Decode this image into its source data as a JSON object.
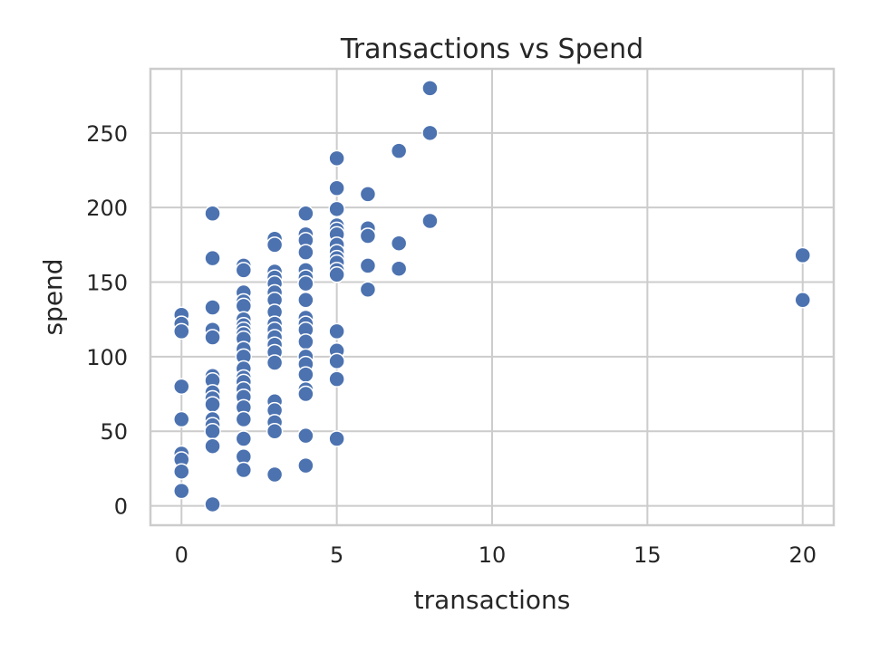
{
  "chart_data": {
    "type": "scatter",
    "title": "Transactions vs Spend",
    "xlabel": "transactions",
    "ylabel": "spend",
    "xlim": [
      -1,
      21
    ],
    "ylim": [
      -13,
      293
    ],
    "xticks": [
      0,
      5,
      10,
      15,
      20
    ],
    "yticks": [
      0,
      50,
      100,
      150,
      200,
      250
    ],
    "grid": true,
    "color": "#4c72b0",
    "points": [
      {
        "x": 0,
        "y": 128
      },
      {
        "x": 0,
        "y": 122
      },
      {
        "x": 0,
        "y": 117
      },
      {
        "x": 0,
        "y": 80
      },
      {
        "x": 0,
        "y": 58
      },
      {
        "x": 0,
        "y": 35
      },
      {
        "x": 0,
        "y": 31
      },
      {
        "x": 0,
        "y": 23
      },
      {
        "x": 0,
        "y": 10
      },
      {
        "x": 1,
        "y": 196
      },
      {
        "x": 1,
        "y": 166
      },
      {
        "x": 1,
        "y": 133
      },
      {
        "x": 1,
        "y": 118
      },
      {
        "x": 1,
        "y": 113
      },
      {
        "x": 1,
        "y": 87
      },
      {
        "x": 1,
        "y": 84
      },
      {
        "x": 1,
        "y": 76
      },
      {
        "x": 1,
        "y": 72
      },
      {
        "x": 1,
        "y": 68
      },
      {
        "x": 1,
        "y": 58
      },
      {
        "x": 1,
        "y": 54
      },
      {
        "x": 1,
        "y": 50
      },
      {
        "x": 1,
        "y": 40
      },
      {
        "x": 1,
        "y": 1
      },
      {
        "x": 2,
        "y": 161
      },
      {
        "x": 2,
        "y": 158
      },
      {
        "x": 2,
        "y": 143
      },
      {
        "x": 2,
        "y": 137
      },
      {
        "x": 2,
        "y": 134
      },
      {
        "x": 2,
        "y": 125
      },
      {
        "x": 2,
        "y": 121
      },
      {
        "x": 2,
        "y": 118
      },
      {
        "x": 2,
        "y": 115
      },
      {
        "x": 2,
        "y": 112
      },
      {
        "x": 2,
        "y": 105
      },
      {
        "x": 2,
        "y": 100
      },
      {
        "x": 2,
        "y": 92
      },
      {
        "x": 2,
        "y": 86
      },
      {
        "x": 2,
        "y": 83
      },
      {
        "x": 2,
        "y": 78
      },
      {
        "x": 2,
        "y": 73
      },
      {
        "x": 2,
        "y": 66
      },
      {
        "x": 2,
        "y": 58
      },
      {
        "x": 2,
        "y": 45
      },
      {
        "x": 2,
        "y": 33
      },
      {
        "x": 2,
        "y": 24
      },
      {
        "x": 3,
        "y": 179
      },
      {
        "x": 3,
        "y": 175
      },
      {
        "x": 3,
        "y": 157
      },
      {
        "x": 3,
        "y": 153
      },
      {
        "x": 3,
        "y": 149
      },
      {
        "x": 3,
        "y": 143
      },
      {
        "x": 3,
        "y": 138
      },
      {
        "x": 3,
        "y": 130
      },
      {
        "x": 3,
        "y": 122
      },
      {
        "x": 3,
        "y": 118
      },
      {
        "x": 3,
        "y": 113
      },
      {
        "x": 3,
        "y": 108
      },
      {
        "x": 3,
        "y": 103
      },
      {
        "x": 3,
        "y": 96
      },
      {
        "x": 3,
        "y": 70
      },
      {
        "x": 3,
        "y": 64
      },
      {
        "x": 3,
        "y": 56
      },
      {
        "x": 3,
        "y": 50
      },
      {
        "x": 3,
        "y": 21
      },
      {
        "x": 4,
        "y": 196
      },
      {
        "x": 4,
        "y": 182
      },
      {
        "x": 4,
        "y": 178
      },
      {
        "x": 4,
        "y": 170
      },
      {
        "x": 4,
        "y": 158
      },
      {
        "x": 4,
        "y": 153
      },
      {
        "x": 4,
        "y": 149
      },
      {
        "x": 4,
        "y": 138
      },
      {
        "x": 4,
        "y": 126
      },
      {
        "x": 4,
        "y": 122
      },
      {
        "x": 4,
        "y": 118
      },
      {
        "x": 4,
        "y": 110
      },
      {
        "x": 4,
        "y": 100
      },
      {
        "x": 4,
        "y": 95
      },
      {
        "x": 4,
        "y": 88
      },
      {
        "x": 4,
        "y": 78
      },
      {
        "x": 4,
        "y": 75
      },
      {
        "x": 4,
        "y": 47
      },
      {
        "x": 4,
        "y": 27
      },
      {
        "x": 5,
        "y": 233
      },
      {
        "x": 5,
        "y": 213
      },
      {
        "x": 5,
        "y": 199
      },
      {
        "x": 5,
        "y": 188
      },
      {
        "x": 5,
        "y": 185
      },
      {
        "x": 5,
        "y": 182
      },
      {
        "x": 5,
        "y": 175
      },
      {
        "x": 5,
        "y": 170
      },
      {
        "x": 5,
        "y": 166
      },
      {
        "x": 5,
        "y": 163
      },
      {
        "x": 5,
        "y": 158
      },
      {
        "x": 5,
        "y": 155
      },
      {
        "x": 5,
        "y": 117
      },
      {
        "x": 5,
        "y": 104
      },
      {
        "x": 5,
        "y": 97
      },
      {
        "x": 5,
        "y": 85
      },
      {
        "x": 5,
        "y": 45
      },
      {
        "x": 6,
        "y": 209
      },
      {
        "x": 6,
        "y": 186
      },
      {
        "x": 6,
        "y": 181
      },
      {
        "x": 6,
        "y": 161
      },
      {
        "x": 6,
        "y": 145
      },
      {
        "x": 7,
        "y": 238
      },
      {
        "x": 7,
        "y": 176
      },
      {
        "x": 7,
        "y": 159
      },
      {
        "x": 8,
        "y": 280
      },
      {
        "x": 8,
        "y": 250
      },
      {
        "x": 8,
        "y": 191
      },
      {
        "x": 20,
        "y": 168
      },
      {
        "x": 20,
        "y": 138
      }
    ]
  }
}
